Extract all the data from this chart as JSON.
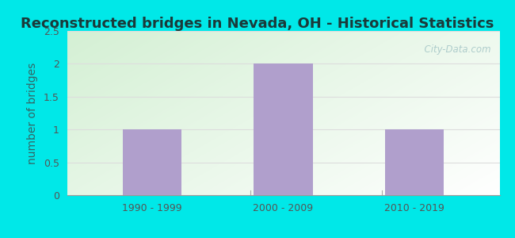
{
  "categories": [
    "1990 - 1999",
    "2000 - 2009",
    "2010 - 2019"
  ],
  "values": [
    1,
    2,
    1
  ],
  "bar_color": "#b09fcc",
  "title": "Reconstructed bridges in Nevada, OH - Historical Statistics",
  "ylabel": "number of bridges",
  "ylim": [
    0,
    2.5
  ],
  "yticks": [
    0,
    0.5,
    1.0,
    1.5,
    2.0,
    2.5
  ],
  "outer_bg": "#00e8e8",
  "plot_bg_left": "#d4f0d4",
  "plot_bg_right": "#f8fff8",
  "plot_bg_top": "#e8f8e8",
  "plot_bg_bottom": "#ffffff",
  "title_color": "#1a3a3a",
  "title_fontsize": 13,
  "ylabel_color": "#336666",
  "ylabel_fontsize": 10,
  "tick_color": "#555555",
  "tick_fontsize": 9,
  "watermark_text": "  City-Data.com",
  "watermark_color": "#a8c8c8",
  "grid_color": "#dddddd",
  "bar_width": 0.45
}
